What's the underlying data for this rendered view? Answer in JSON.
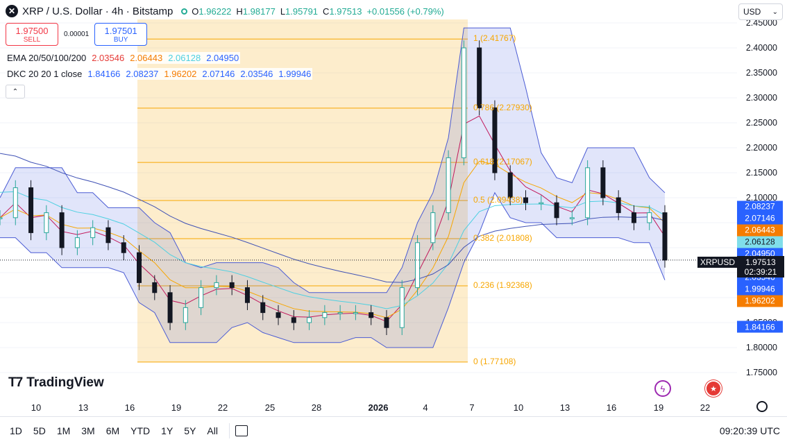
{
  "header": {
    "symbol_icon": "xrp-logo-icon",
    "title": "XRP / U.S. Dollar · 4h · Bitstamp",
    "ohlc": {
      "o_label": "O",
      "o": "1.96222",
      "h_label": "H",
      "h": "1.98177",
      "l_label": "L",
      "l": "1.95791",
      "c_label": "C",
      "c": "1.97513",
      "change": "+0.01556 (+0.79%)"
    }
  },
  "trade": {
    "sell_price": "1.97500",
    "sell_label": "SELL",
    "spread": "0.00001",
    "buy_price": "1.97501",
    "buy_label": "BUY"
  },
  "indicators": {
    "ema": {
      "name": "EMA 20/50/100/200",
      "values": [
        "2.03546",
        "2.06443",
        "2.06128",
        "2.04950"
      ]
    },
    "dkc": {
      "name": "DKC 20 20 1 close",
      "values": [
        "1.84166",
        "2.08237",
        "1.96202",
        "2.07146",
        "2.03546",
        "1.99946"
      ]
    },
    "collapse_icon": "chevron-up-icon"
  },
  "colors": {
    "up": "#26a69a",
    "down": "#131722",
    "ema20": "#e65100",
    "ema50": "#f7a600",
    "ema100": "#4dd0e1",
    "ema200": "#3f51b5",
    "fib": "#f7a600",
    "channel": "#4a5bd4",
    "ema20_line": "#c2185b"
  },
  "fib_labels": [
    {
      "text": "1 (2.41767)",
      "price": 2.41767
    },
    {
      "text": "0.786 (2.27930)",
      "price": 2.2793
    },
    {
      "text": "0.618 (2.17067)",
      "price": 2.17067
    },
    {
      "text": "0.5 (2.09438)",
      "price": 2.09438
    },
    {
      "text": "0.382 (2.01808)",
      "price": 2.01808
    },
    {
      "text": "0.236 (1.92368)",
      "price": 1.92368
    },
    {
      "text": "0 (1.77108)",
      "price": 1.77108
    }
  ],
  "price_scale": {
    "ticks": [
      "2.45000",
      "2.40000",
      "2.35000",
      "2.30000",
      "2.25000",
      "2.20000",
      "2.15000",
      "2.10000",
      "2.05000",
      "2.00000",
      "1.95000",
      "1.90000",
      "1.85000",
      "1.80000",
      "1.75000"
    ],
    "tags": [
      {
        "text": "2.08237",
        "price": 2.08237,
        "color": "#2962ff"
      },
      {
        "text": "2.07146",
        "price": 2.07146,
        "color": "#2962ff"
      },
      {
        "text": "2.06443",
        "price": 2.06443,
        "color": "#f57c00"
      },
      {
        "text": "2.06128",
        "price": 2.06128,
        "color": "#80deea"
      },
      {
        "text": "2.04950",
        "price": 2.0495,
        "color": "#2962ff"
      },
      {
        "text": "2.03546",
        "price": 2.03546,
        "color": "#e53935"
      },
      {
        "text": "2.03546",
        "price": 2.03546,
        "color": "#2962ff"
      },
      {
        "text": "1.99946",
        "price": 1.99946,
        "color": "#2962ff"
      },
      {
        "text": "1.96202",
        "price": 1.96202,
        "color": "#f57c00"
      },
      {
        "text": "1.84166",
        "price": 1.84166,
        "color": "#2962ff"
      }
    ],
    "currency": "USD"
  },
  "last_price": {
    "symbol": "XRPUSD",
    "price": "1.97513",
    "countdown": "02:39:21"
  },
  "time_axis": {
    "labels": [
      {
        "text": "10",
        "bold": false
      },
      {
        "text": "13",
        "bold": false
      },
      {
        "text": "16",
        "bold": false
      },
      {
        "text": "19",
        "bold": false
      },
      {
        "text": "22",
        "bold": false
      },
      {
        "text": "25",
        "bold": false
      },
      {
        "text": "28",
        "bold": false
      },
      {
        "text": "2026",
        "bold": true
      },
      {
        "text": "4",
        "bold": false
      },
      {
        "text": "7",
        "bold": false
      },
      {
        "text": "10",
        "bold": false
      },
      {
        "text": "13",
        "bold": false
      },
      {
        "text": "16",
        "bold": false
      },
      {
        "text": "19",
        "bold": false
      },
      {
        "text": "22",
        "bold": false
      }
    ]
  },
  "watermark": "TradingView",
  "range_buttons": [
    "1D",
    "5D",
    "1M",
    "3M",
    "6M",
    "YTD",
    "1Y",
    "5Y",
    "All"
  ],
  "clock": "09:20:39 UTC",
  "chart_data": {
    "type": "candlestick",
    "symbol": "XRP / U.S. Dollar",
    "interval": "4h",
    "ylim": [
      1.73,
      2.45
    ],
    "close_path": [
      {
        "x": "Dec 7",
        "y": 2.06
      },
      {
        "x": "Dec 8",
        "y": 2.12
      },
      {
        "x": "Dec 9",
        "y": 2.03
      },
      {
        "x": "Dec 10",
        "y": 2.07
      },
      {
        "x": "Dec 11",
        "y": 2.0
      },
      {
        "x": "Dec 12",
        "y": 2.02
      },
      {
        "x": "Dec 13",
        "y": 2.04
      },
      {
        "x": "Dec 14",
        "y": 2.01
      },
      {
        "x": "Dec 15",
        "y": 1.99
      },
      {
        "x": "Dec 16",
        "y": 1.93
      },
      {
        "x": "Dec 17",
        "y": 1.91
      },
      {
        "x": "Dec 18",
        "y": 1.85
      },
      {
        "x": "Dec 19",
        "y": 1.88
      },
      {
        "x": "Dec 20",
        "y": 1.92
      },
      {
        "x": "Dec 21",
        "y": 1.93
      },
      {
        "x": "Dec 22",
        "y": 1.92
      },
      {
        "x": "Dec 23",
        "y": 1.89
      },
      {
        "x": "Dec 24",
        "y": 1.87
      },
      {
        "x": "Dec 25",
        "y": 1.86
      },
      {
        "x": "Dec 26",
        "y": 1.85
      },
      {
        "x": "Dec 27",
        "y": 1.86
      },
      {
        "x": "Dec 28",
        "y": 1.87
      },
      {
        "x": "Dec 29",
        "y": 1.87
      },
      {
        "x": "Dec 30",
        "y": 1.87
      },
      {
        "x": "Dec 31",
        "y": 1.86
      },
      {
        "x": "Jan 1",
        "y": 1.84
      },
      {
        "x": "Jan 2",
        "y": 1.92
      },
      {
        "x": "Jan 3",
        "y": 2.01
      },
      {
        "x": "Jan 4",
        "y": 2.07
      },
      {
        "x": "Jan 5",
        "y": 2.18
      },
      {
        "x": "Jan 6",
        "y": 2.4
      },
      {
        "x": "Jan 7",
        "y": 2.28
      },
      {
        "x": "Jan 8",
        "y": 2.15
      },
      {
        "x": "Jan 9",
        "y": 2.1
      },
      {
        "x": "Jan 10",
        "y": 2.09
      },
      {
        "x": "Jan 11",
        "y": 2.09
      },
      {
        "x": "Jan 12",
        "y": 2.06
      },
      {
        "x": "Jan 13",
        "y": 2.06
      },
      {
        "x": "Jan 14",
        "y": 2.16
      },
      {
        "x": "Jan 15",
        "y": 2.1
      },
      {
        "x": "Jan 16",
        "y": 2.07
      },
      {
        "x": "Jan 17",
        "y": 2.05
      },
      {
        "x": "Jan 18",
        "y": 2.07
      },
      {
        "x": "Jan 19",
        "y": 1.97513
      }
    ]
  }
}
